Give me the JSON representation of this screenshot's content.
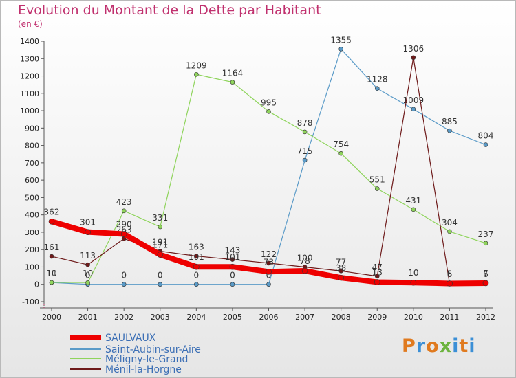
{
  "title": "Evolution du Montant de la Dette par Habitant",
  "subtitle": "(en €)",
  "brand": {
    "text": "Proxiti",
    "colors": [
      "#e07a1f",
      "#3b8fd6",
      "#e07a1f",
      "#6cb33e",
      "#3b8fd6",
      "#e07a1f",
      "#3b8fd6"
    ]
  },
  "chart_data": {
    "type": "line",
    "x": [
      "2000",
      "2001",
      "2002",
      "2003",
      "2004",
      "2005",
      "2006",
      "2007",
      "2008",
      "2009",
      "2010",
      "2011",
      "2012"
    ],
    "ylim": [
      -100,
      1400
    ],
    "yticks": [
      -100,
      0,
      100,
      200,
      300,
      400,
      500,
      600,
      700,
      800,
      900,
      1000,
      1100,
      1200,
      1300,
      1400
    ],
    "grid": false,
    "legend_position": "bottom-left",
    "series": [
      {
        "name": "Saint-Aubin-sur-Aire",
        "color": "#5b9bc8",
        "values": [
          10,
          0,
          0,
          0,
          0,
          0,
          0,
          715,
          1355,
          1128,
          1009,
          885,
          804
        ]
      },
      {
        "name": "Méligny-le-Grand",
        "color": "#8fd45c",
        "values": [
          11,
          10,
          423,
          331,
          null,
          null,
          null,
          null,
          null,
          null,
          null,
          null,
          null
        ],
        "segment2": true
      },
      {
        "name": "Ménil-la-Horgne",
        "color": "#6e1a1a",
        "values": [
          161,
          113,
          263,
          191,
          163,
          143,
          122,
          100,
          77,
          47,
          1306,
          6,
          6
        ]
      },
      {
        "name": "SAULVAUX",
        "color": "#ee0000",
        "values": [
          362,
          301,
          290,
          171,
          101,
          101,
          73,
          78,
          38,
          13,
          10,
          5,
          7
        ]
      }
    ],
    "meligny_full": [
      11,
      10,
      423,
      331,
      1209,
      1164,
      995,
      878,
      754,
      551,
      431,
      304,
      237
    ],
    "labels": {
      "Saint-Aubin-sur-Aire": [
        "10",
        "0",
        "0",
        "0",
        "0",
        "0",
        "0",
        "715",
        "1355",
        "1128",
        "1009",
        "885",
        "804"
      ],
      "Méligny-le-Grand": [
        "11",
        "10",
        "423",
        "331",
        "1209",
        "1164",
        "995",
        "878",
        "754",
        "551",
        "431",
        "304",
        "237"
      ],
      "Ménil-la-Horgne": [
        "161",
        "113",
        "263",
        "191",
        "163",
        "143",
        "122",
        "100",
        "77",
        "47",
        "1306",
        "6",
        "6"
      ],
      "SAULVAUX": [
        "362",
        "301",
        "290",
        "171",
        "101",
        "101",
        "73",
        "78",
        "38",
        "13",
        "10",
        "5",
        "7"
      ]
    }
  },
  "legend": [
    {
      "name": "SAULVAUX",
      "color": "#ee0000"
    },
    {
      "name": "Saint-Aubin-sur-Aire",
      "color": "#5b9bc8"
    },
    {
      "name": "Méligny-le-Grand",
      "color": "#8fd45c"
    },
    {
      "name": "Ménil-la-Horgne",
      "color": "#6e1a1a"
    }
  ]
}
